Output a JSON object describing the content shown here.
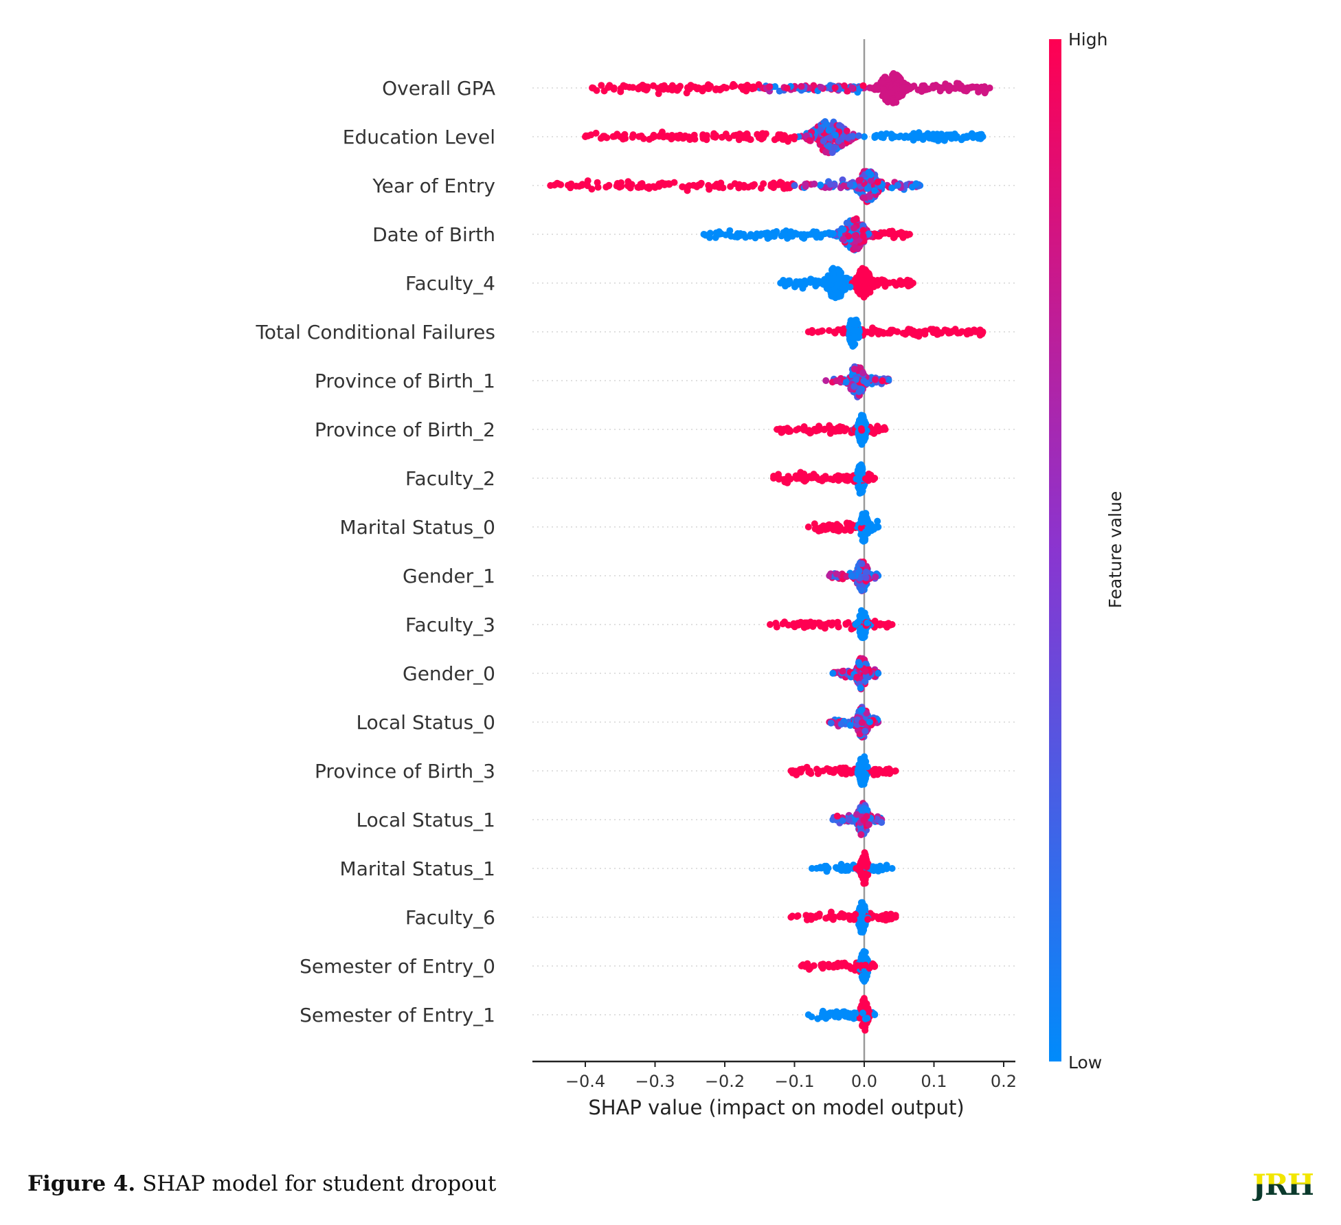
{
  "chart_data": {
    "type": "scatter",
    "subtype": "shap-beeswarm",
    "xlabel": "SHAP value (impact on model output)",
    "xlim": [
      -0.476,
      0.217
    ],
    "xticks": [
      -0.4,
      -0.3,
      -0.2,
      -0.1,
      0.0,
      0.1,
      0.2
    ],
    "xtick_labels": [
      "−0.4",
      "−0.3",
      "−0.2",
      "−0.1",
      "0.0",
      "0.1",
      "0.2"
    ],
    "colorbar": {
      "label": "Feature value",
      "high_label": "High",
      "low_label": "Low",
      "low_color": "#008bfb",
      "high_color": "#ff0052"
    },
    "grid": "dotted horizontal per feature",
    "features": [
      {
        "name": "Overall GPA",
        "segments": [
          {
            "range": [
              -0.39,
              -0.15
            ],
            "value": 1.0,
            "n": 90
          },
          {
            "range": [
              -0.15,
              0.0
            ],
            "value": "mixed",
            "n": 80
          },
          {
            "range": [
              0.06,
              0.18
            ],
            "value": 0.8,
            "n": 60
          }
        ],
        "core": {
          "center": 0.04,
          "spread": 0.012,
          "value": 0.8,
          "n": 140
        }
      },
      {
        "name": "Education Level",
        "segments": [
          {
            "range": [
              -0.4,
              -0.1
            ],
            "value": 1.0,
            "n": 100
          },
          {
            "range": [
              0.0,
              0.17
            ],
            "value": 0.0,
            "n": 90
          }
        ],
        "core": {
          "center": -0.05,
          "spread": 0.018,
          "value": "mixed",
          "n": 160
        }
      },
      {
        "name": "Year of Entry",
        "segments": [
          {
            "range": [
              -0.45,
              -0.1
            ],
            "value": 1.0,
            "n": 110
          },
          {
            "range": [
              -0.1,
              -0.02
            ],
            "value": "mixed",
            "n": 30
          },
          {
            "range": [
              0.02,
              0.08
            ],
            "value": "mixed",
            "n": 30
          }
        ],
        "core": {
          "center": 0.005,
          "spread": 0.012,
          "value": "mixed",
          "n": 130
        }
      },
      {
        "name": "Date of Birth",
        "segments": [
          {
            "range": [
              -0.23,
              -0.03
            ],
            "value": 0.0,
            "n": 90
          },
          {
            "range": [
              0.01,
              0.065
            ],
            "value": 1.0,
            "n": 35
          }
        ],
        "core": {
          "center": -0.015,
          "spread": 0.012,
          "value": "mixed",
          "n": 120
        }
      },
      {
        "name": "Faculty_4",
        "segments": [
          {
            "range": [
              -0.12,
              -0.01
            ],
            "value": 0.0,
            "n": 60
          },
          {
            "range": [
              -0.01,
              0.07
            ],
            "value": 1.0,
            "n": 60
          }
        ],
        "core": {
          "center": -0.04,
          "spread": 0.01,
          "value": 0.0,
          "n": 110
        },
        "core2": {
          "center": 0.0,
          "spread": 0.008,
          "value": 1.0,
          "n": 100
        }
      },
      {
        "name": "Total Conditional Failures",
        "segments": [
          {
            "range": [
              -0.08,
              0.17
            ],
            "value": 1.0,
            "n": 110
          }
        ],
        "core": {
          "center": -0.015,
          "spread": 0.005,
          "value": 0.0,
          "n": 100
        }
      },
      {
        "name": "Province of Birth_1",
        "segments": [
          {
            "range": [
              -0.055,
              0.035
            ],
            "value": "mixed",
            "n": 60
          }
        ],
        "core": {
          "center": -0.01,
          "spread": 0.008,
          "value": "mixed",
          "n": 110
        }
      },
      {
        "name": "Province of Birth_2",
        "segments": [
          {
            "range": [
              -0.125,
              0.03
            ],
            "value": 1.0,
            "n": 80
          }
        ],
        "core": {
          "center": -0.003,
          "spread": 0.004,
          "value": 0.0,
          "n": 100
        }
      },
      {
        "name": "Faculty_2",
        "segments": [
          {
            "range": [
              -0.13,
              0.015
            ],
            "value": 1.0,
            "n": 80
          }
        ],
        "core": {
          "center": -0.005,
          "spread": 0.004,
          "value": 0.0,
          "n": 100
        }
      },
      {
        "name": "Marital Status_0",
        "segments": [
          {
            "range": [
              -0.08,
              0.0
            ],
            "value": 1.0,
            "n": 60
          },
          {
            "range": [
              0.0,
              0.02
            ],
            "value": 0.0,
            "n": 15
          }
        ],
        "core": {
          "center": 0.0,
          "spread": 0.004,
          "value": 0.0,
          "n": 100
        }
      },
      {
        "name": "Gender_1",
        "segments": [
          {
            "range": [
              -0.05,
              0.02
            ],
            "value": "mixed",
            "n": 50
          }
        ],
        "core": {
          "center": -0.003,
          "spread": 0.006,
          "value": "mixed",
          "n": 100
        }
      },
      {
        "name": "Faculty_3",
        "segments": [
          {
            "range": [
              -0.135,
              0.04
            ],
            "value": 1.0,
            "n": 80
          }
        ],
        "core": {
          "center": -0.002,
          "spread": 0.004,
          "value": 0.0,
          "n": 100
        }
      },
      {
        "name": "Gender_0",
        "segments": [
          {
            "range": [
              -0.045,
              0.02
            ],
            "value": "mixed",
            "n": 50
          }
        ],
        "core": {
          "center": -0.003,
          "spread": 0.006,
          "value": "mixed",
          "n": 100
        }
      },
      {
        "name": "Local Status_0",
        "segments": [
          {
            "range": [
              -0.05,
              0.02
            ],
            "value": "mixed",
            "n": 50
          }
        ],
        "core": {
          "center": -0.002,
          "spread": 0.006,
          "value": "mixed",
          "n": 100
        }
      },
      {
        "name": "Province of Birth_3",
        "segments": [
          {
            "range": [
              -0.105,
              0.045
            ],
            "value": 1.0,
            "n": 75
          }
        ],
        "core": {
          "center": -0.002,
          "spread": 0.004,
          "value": 0.0,
          "n": 100
        }
      },
      {
        "name": "Local Status_1",
        "segments": [
          {
            "range": [
              -0.045,
              0.025
            ],
            "value": "mixed",
            "n": 50
          }
        ],
        "core": {
          "center": -0.002,
          "spread": 0.006,
          "value": "mixed",
          "n": 100
        }
      },
      {
        "name": "Marital Status_1",
        "segments": [
          {
            "range": [
              -0.075,
              0.04
            ],
            "value": 0.0,
            "n": 65
          }
        ],
        "core": {
          "center": 0.0,
          "spread": 0.004,
          "value": 1.0,
          "n": 100
        }
      },
      {
        "name": "Faculty_6",
        "segments": [
          {
            "range": [
              -0.105,
              0.045
            ],
            "value": 1.0,
            "n": 75
          }
        ],
        "core": {
          "center": -0.003,
          "spread": 0.004,
          "value": 0.0,
          "n": 100
        }
      },
      {
        "name": "Semester of Entry_0",
        "segments": [
          {
            "range": [
              -0.09,
              0.015
            ],
            "value": 1.0,
            "n": 60
          }
        ],
        "core": {
          "center": 0.0,
          "spread": 0.004,
          "value": 0.0,
          "n": 90
        }
      },
      {
        "name": "Semester of Entry_1",
        "segments": [
          {
            "range": [
              -0.08,
              0.015
            ],
            "value": 0.0,
            "n": 60
          }
        ],
        "core": {
          "center": 0.0,
          "spread": 0.004,
          "value": 1.0,
          "n": 90
        }
      }
    ]
  },
  "caption": {
    "label": "Figure 4.",
    "text": " SHAP model for student dropout"
  },
  "logo": {
    "text": "JRH"
  }
}
